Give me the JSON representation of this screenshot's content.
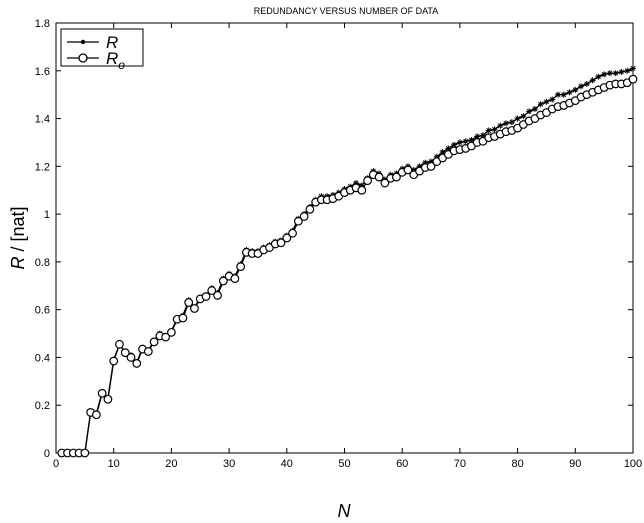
{
  "chart_data": {
    "type": "line",
    "title": "REDUNDANCY VERSUS NUMBER OF DATA",
    "xlabel": "N",
    "ylabel": "R / [nat]",
    "xlim": [
      0,
      100
    ],
    "ylim": [
      0,
      1.8
    ],
    "xticks": [
      0,
      10,
      20,
      30,
      40,
      50,
      60,
      70,
      80,
      90,
      100
    ],
    "yticks": [
      0,
      0.2,
      0.4,
      0.6,
      0.8,
      1,
      1.2,
      1.4,
      1.6,
      1.8
    ],
    "grid": false,
    "legend_position": "top-left",
    "x": [
      1,
      2,
      3,
      4,
      5,
      6,
      7,
      8,
      9,
      10,
      11,
      12,
      13,
      14,
      15,
      16,
      17,
      18,
      19,
      20,
      21,
      22,
      23,
      24,
      25,
      26,
      27,
      28,
      29,
      30,
      31,
      32,
      33,
      34,
      35,
      36,
      37,
      38,
      39,
      40,
      41,
      42,
      43,
      44,
      45,
      46,
      47,
      48,
      49,
      50,
      51,
      52,
      53,
      54,
      55,
      56,
      57,
      58,
      59,
      60,
      61,
      62,
      63,
      64,
      65,
      66,
      67,
      68,
      69,
      70,
      71,
      72,
      73,
      74,
      75,
      76,
      77,
      78,
      79,
      80,
      81,
      82,
      83,
      84,
      85,
      86,
      87,
      88,
      89,
      90,
      91,
      92,
      93,
      94,
      95,
      96,
      97,
      98,
      99,
      100
    ],
    "series": [
      {
        "name": "R",
        "marker": "star",
        "values": [
          0,
          0,
          0,
          0,
          0,
          0.17,
          0.165,
          0.255,
          0.23,
          0.39,
          0.455,
          0.42,
          0.41,
          0.38,
          0.44,
          0.43,
          0.47,
          0.5,
          0.49,
          0.51,
          0.565,
          0.575,
          0.64,
          0.61,
          0.65,
          0.66,
          0.69,
          0.67,
          0.73,
          0.75,
          0.74,
          0.79,
          0.85,
          0.845,
          0.845,
          0.86,
          0.87,
          0.885,
          0.89,
          0.91,
          0.93,
          0.98,
          1.0,
          1.03,
          1.06,
          1.075,
          1.075,
          1.08,
          1.09,
          1.105,
          1.115,
          1.13,
          1.12,
          1.15,
          1.18,
          1.17,
          1.145,
          1.165,
          1.17,
          1.19,
          1.2,
          1.185,
          1.2,
          1.215,
          1.22,
          1.24,
          1.26,
          1.275,
          1.29,
          1.3,
          1.305,
          1.31,
          1.325,
          1.33,
          1.35,
          1.355,
          1.37,
          1.38,
          1.385,
          1.4,
          1.41,
          1.43,
          1.44,
          1.46,
          1.47,
          1.48,
          1.5,
          1.5,
          1.51,
          1.52,
          1.535,
          1.545,
          1.56,
          1.575,
          1.585,
          1.59,
          1.59,
          1.595,
          1.6,
          1.61
        ]
      },
      {
        "name": "R_o",
        "marker": "circle",
        "values": [
          0,
          0,
          0,
          0,
          0,
          0.17,
          0.16,
          0.25,
          0.225,
          0.385,
          0.455,
          0.42,
          0.4,
          0.375,
          0.435,
          0.425,
          0.465,
          0.49,
          0.485,
          0.505,
          0.56,
          0.565,
          0.63,
          0.605,
          0.645,
          0.655,
          0.68,
          0.66,
          0.72,
          0.74,
          0.73,
          0.78,
          0.84,
          0.835,
          0.835,
          0.85,
          0.86,
          0.875,
          0.88,
          0.9,
          0.92,
          0.97,
          0.99,
          1.02,
          1.05,
          1.06,
          1.06,
          1.065,
          1.075,
          1.09,
          1.1,
          1.11,
          1.1,
          1.14,
          1.165,
          1.155,
          1.13,
          1.15,
          1.155,
          1.175,
          1.185,
          1.165,
          1.18,
          1.195,
          1.2,
          1.22,
          1.235,
          1.25,
          1.265,
          1.27,
          1.275,
          1.285,
          1.3,
          1.305,
          1.32,
          1.325,
          1.335,
          1.345,
          1.35,
          1.36,
          1.375,
          1.39,
          1.4,
          1.415,
          1.425,
          1.44,
          1.45,
          1.455,
          1.465,
          1.475,
          1.49,
          1.5,
          1.51,
          1.52,
          1.53,
          1.54,
          1.545,
          1.545,
          1.55,
          1.565
        ]
      }
    ]
  },
  "legend": {
    "entries": [
      {
        "label": "R",
        "subscript": ""
      },
      {
        "label": "R",
        "subscript": "o"
      }
    ]
  }
}
